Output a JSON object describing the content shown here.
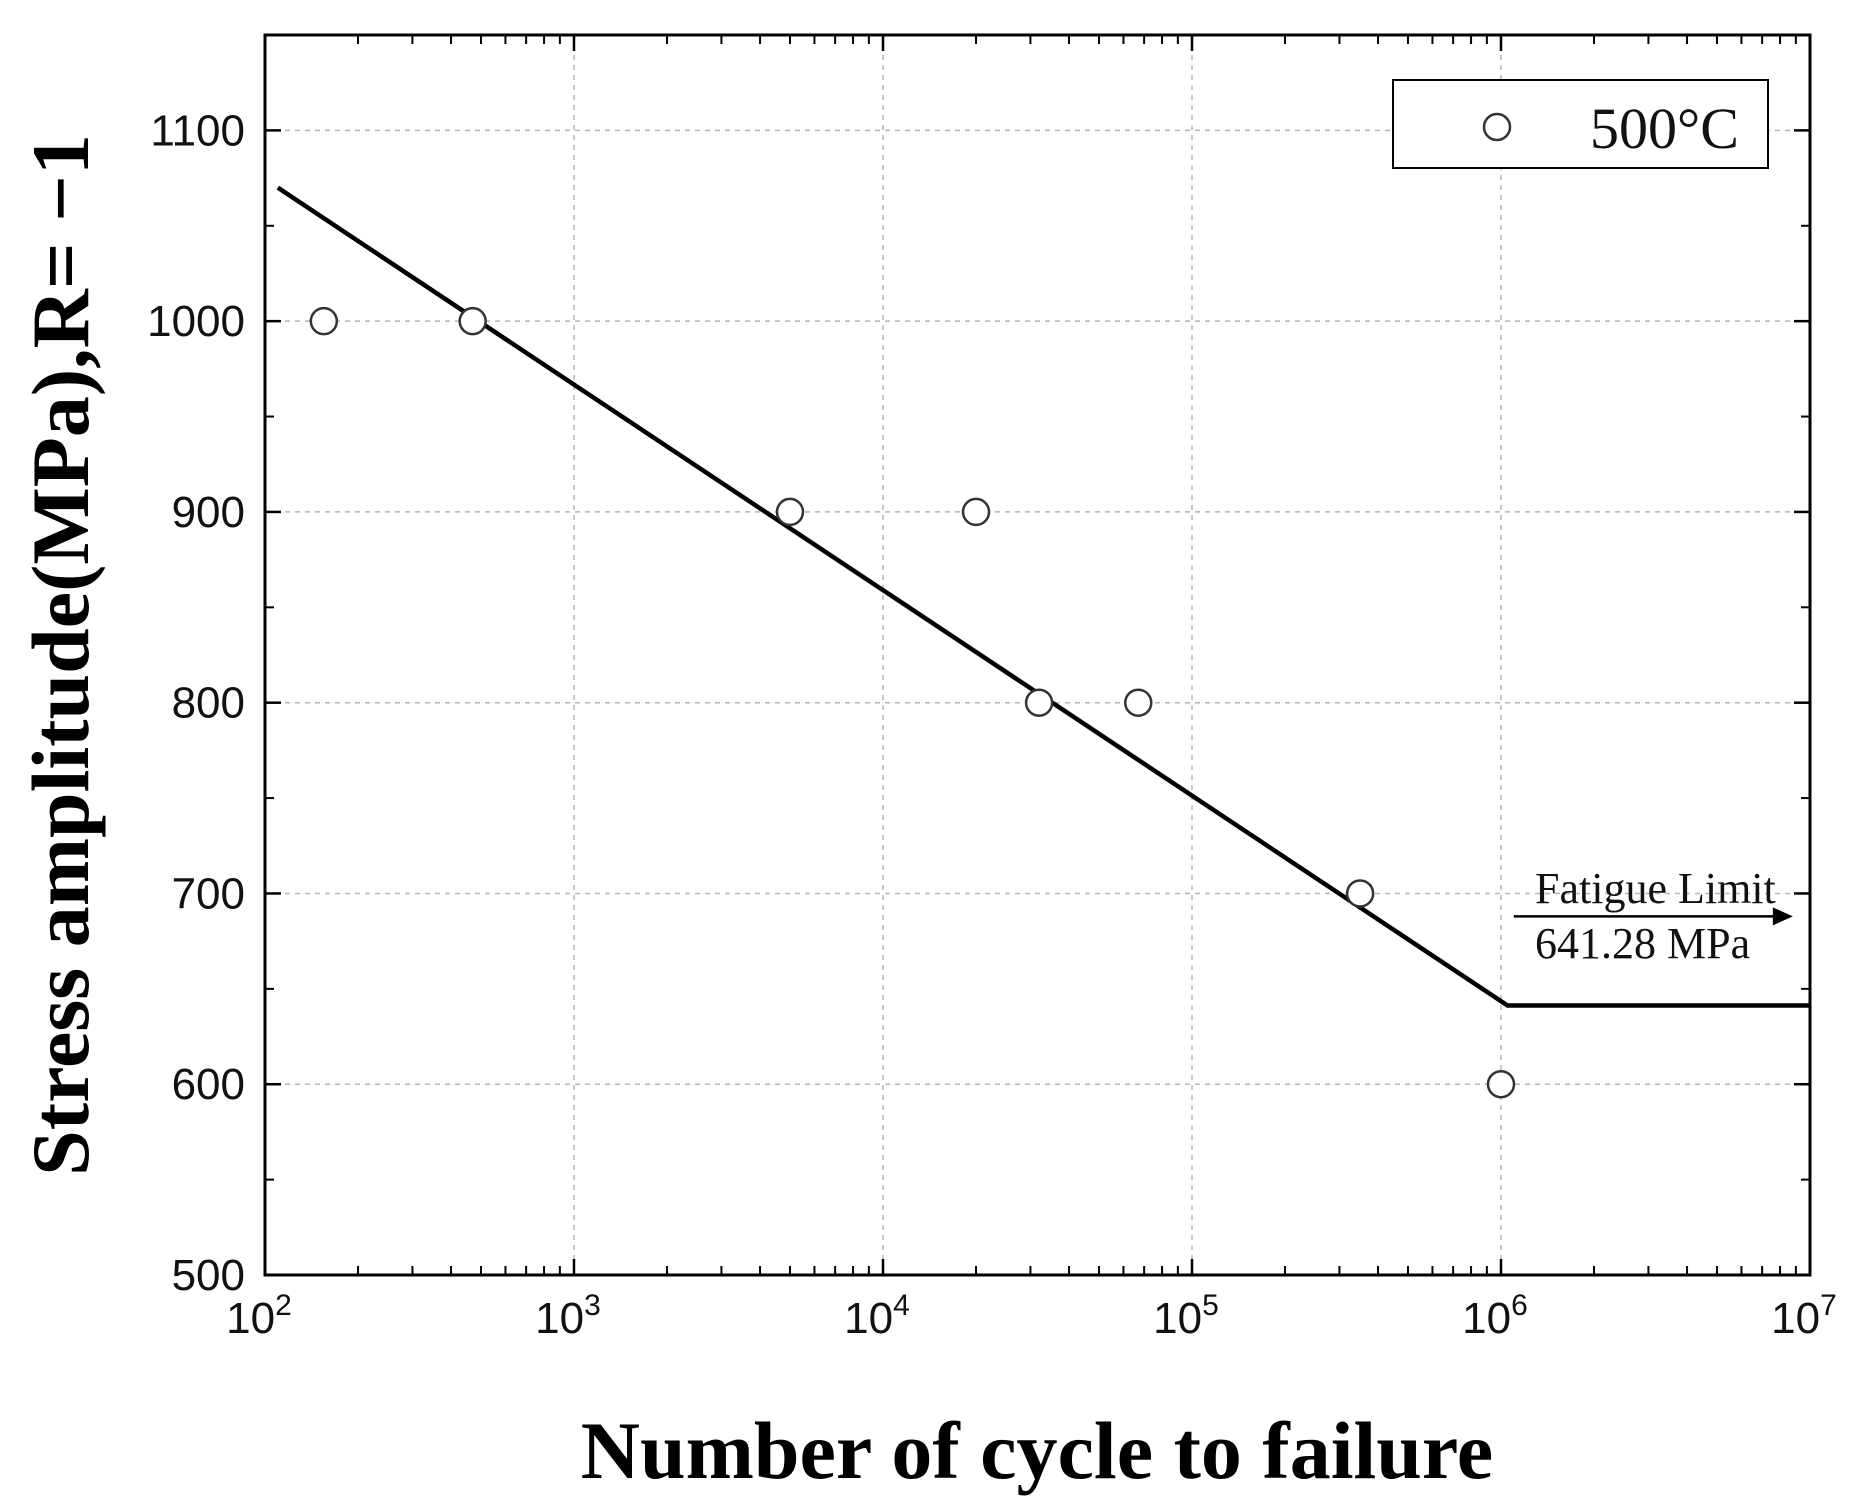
{
  "chart_data": {
    "type": "scatter",
    "title": "",
    "xlabel": "Number of cycle to failure",
    "ylabel": "Stress amplitude(MPa),R= −1",
    "xscale": "log",
    "xlim": [
      100,
      10000000
    ],
    "ylim": [
      500,
      1150
    ],
    "grid": true,
    "legend_position": "top-right",
    "x_ticks": [
      {
        "base": "10",
        "exp": "2"
      },
      {
        "base": "10",
        "exp": "3"
      },
      {
        "base": "10",
        "exp": "4"
      },
      {
        "base": "10",
        "exp": "5"
      },
      {
        "base": "10",
        "exp": "6"
      },
      {
        "base": "10",
        "exp": "7"
      }
    ],
    "y_ticks": [
      "500",
      "600",
      "700",
      "800",
      "900",
      "1000",
      "1100"
    ],
    "series": [
      {
        "name": "500°C",
        "marker": "open-circle",
        "points": [
          {
            "x": 155,
            "y": 1000
          },
          {
            "x": 470,
            "y": 1000
          },
          {
            "x": 5000,
            "y": 900
          },
          {
            "x": 20000,
            "y": 900
          },
          {
            "x": 32000,
            "y": 800
          },
          {
            "x": 67000,
            "y": 800
          },
          {
            "x": 350000,
            "y": 700
          },
          {
            "x": 1000000,
            "y": 600
          }
        ]
      }
    ],
    "fit_line": {
      "color": "#000000",
      "points": [
        {
          "x": 110,
          "y": 1070
        },
        {
          "x": 1050000,
          "y": 641.28
        },
        {
          "x": 10000000,
          "y": 641.28
        }
      ]
    },
    "annotation": {
      "line1": "Fatigue Limit",
      "line2": "641.28  MPa",
      "arrow_from_x": 1100000,
      "arrow_to_x": 8800000,
      "arrow_y": 688
    }
  }
}
